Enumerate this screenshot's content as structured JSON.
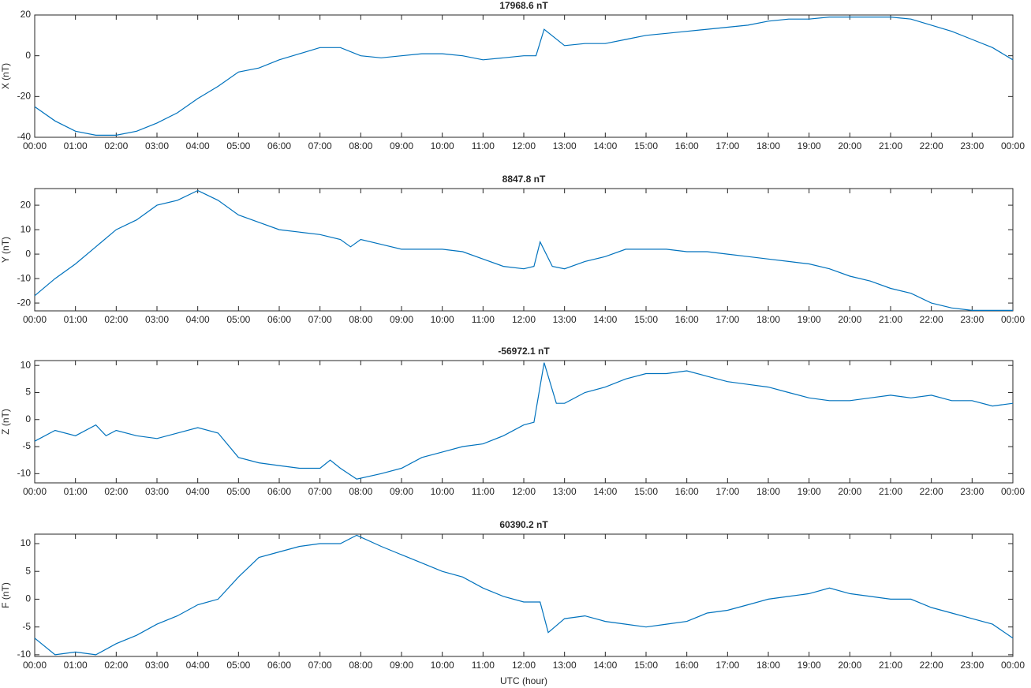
{
  "chart_data": [
    {
      "type": "line",
      "title": "17968.6 nT",
      "ylabel": "X (nT)",
      "color": "#0072bd",
      "xlim": [
        0,
        24
      ],
      "ylim": [
        -40,
        20
      ],
      "yticks": [
        -40,
        -20,
        0,
        20
      ],
      "xticks": [
        {
          "value": 0,
          "label": "00:00"
        },
        {
          "value": 1,
          "label": "01:00"
        },
        {
          "value": 2,
          "label": "02:00"
        },
        {
          "value": 3,
          "label": "03:00"
        },
        {
          "value": 4,
          "label": "04:00"
        },
        {
          "value": 5,
          "label": "05:00"
        },
        {
          "value": 6,
          "label": "06:00"
        },
        {
          "value": 7,
          "label": "07:00"
        },
        {
          "value": 8,
          "label": "08:00"
        },
        {
          "value": 9,
          "label": "09:00"
        },
        {
          "value": 10,
          "label": "10:00"
        },
        {
          "value": 11,
          "label": "11:00"
        },
        {
          "value": 12,
          "label": "12:00"
        },
        {
          "value": 13,
          "label": "13:00"
        },
        {
          "value": 14,
          "label": "14:00"
        },
        {
          "value": 15,
          "label": "15:00"
        },
        {
          "value": 16,
          "label": "16:00"
        },
        {
          "value": 17,
          "label": "17:00"
        },
        {
          "value": 18,
          "label": "18:00"
        },
        {
          "value": 19,
          "label": "19:00"
        },
        {
          "value": 20,
          "label": "20:00"
        },
        {
          "value": 21,
          "label": "21:00"
        },
        {
          "value": 22,
          "label": "22:00"
        },
        {
          "value": 23,
          "label": "23:00"
        },
        {
          "value": 24,
          "label": "00:00"
        }
      ],
      "x": [
        0,
        0.5,
        1,
        1.5,
        2,
        2.5,
        3,
        3.5,
        4,
        4.5,
        5,
        5.5,
        6,
        6.5,
        7,
        7.5,
        8,
        8.5,
        9,
        9.5,
        10,
        10.5,
        11,
        11.5,
        12,
        12.3,
        12.5,
        13,
        13.5,
        14,
        14.5,
        15,
        15.5,
        16,
        16.5,
        17,
        17.5,
        18,
        18.5,
        19,
        19.5,
        20,
        20.5,
        21,
        21.5,
        22,
        22.5,
        23,
        23.5,
        24
      ],
      "values": [
        -25,
        -32,
        -37,
        -39,
        -39,
        -37,
        -33,
        -28,
        -21,
        -15,
        -8,
        -6,
        -2,
        1,
        4,
        4,
        0,
        -1,
        0,
        1,
        1,
        0,
        -2,
        -1,
        0,
        0,
        13,
        5,
        6,
        6,
        8,
        10,
        11,
        12,
        13,
        14,
        15,
        17,
        18,
        18,
        19,
        19,
        19,
        19,
        18,
        15,
        12,
        8,
        4,
        -2
      ]
    },
    {
      "type": "line",
      "title": "8847.8 nT",
      "ylabel": "Y (nT)",
      "color": "#0072bd",
      "xlim": [
        0,
        24
      ],
      "ylim": [
        -23.2,
        26.8
      ],
      "yticks": [
        -20,
        -10,
        0,
        10,
        20
      ],
      "xticks": [
        {
          "value": 0,
          "label": "00:00"
        },
        {
          "value": 1,
          "label": "01:00"
        },
        {
          "value": 2,
          "label": "02:00"
        },
        {
          "value": 3,
          "label": "03:00"
        },
        {
          "value": 4,
          "label": "04:00"
        },
        {
          "value": 5,
          "label": "05:00"
        },
        {
          "value": 6,
          "label": "06:00"
        },
        {
          "value": 7,
          "label": "07:00"
        },
        {
          "value": 8,
          "label": "08:00"
        },
        {
          "value": 9,
          "label": "09:00"
        },
        {
          "value": 10,
          "label": "10:00"
        },
        {
          "value": 11,
          "label": "11:00"
        },
        {
          "value": 12,
          "label": "12:00"
        },
        {
          "value": 13,
          "label": "13:00"
        },
        {
          "value": 14,
          "label": "14:00"
        },
        {
          "value": 15,
          "label": "15:00"
        },
        {
          "value": 16,
          "label": "16:00"
        },
        {
          "value": 17,
          "label": "17:00"
        },
        {
          "value": 18,
          "label": "18:00"
        },
        {
          "value": 19,
          "label": "19:00"
        },
        {
          "value": 20,
          "label": "20:00"
        },
        {
          "value": 21,
          "label": "21:00"
        },
        {
          "value": 22,
          "label": "22:00"
        },
        {
          "value": 23,
          "label": "23:00"
        },
        {
          "value": 24,
          "label": "00:00"
        }
      ],
      "x": [
        0,
        0.5,
        1,
        1.5,
        2,
        2.5,
        3,
        3.5,
        4,
        4.5,
        5,
        5.5,
        6,
        6.5,
        7,
        7.5,
        7.75,
        8,
        8.5,
        9,
        9.5,
        10,
        10.5,
        11,
        11.5,
        12,
        12.25,
        12.4,
        12.7,
        13,
        13.5,
        14,
        14.5,
        15,
        15.5,
        16,
        16.5,
        17,
        17.5,
        18,
        18.5,
        19,
        19.5,
        20,
        20.5,
        21,
        21.5,
        22,
        22.5,
        23,
        23.5,
        24
      ],
      "values": [
        -17,
        -10,
        -4,
        3,
        10,
        14,
        20,
        22,
        26,
        22,
        16,
        13,
        10,
        9,
        8,
        6,
        3,
        6,
        4,
        2,
        2,
        2,
        1,
        -2,
        -5,
        -6,
        -5,
        5,
        -5,
        -6,
        -3,
        -1,
        2,
        2,
        2,
        1,
        1,
        0,
        -1,
        -2,
        -3,
        -4,
        -6,
        -9,
        -11,
        -14,
        -16,
        -20,
        -22,
        -23,
        -23,
        -23
      ]
    },
    {
      "type": "line",
      "title": "-56972.1 nT",
      "ylabel": "Z (nT)",
      "color": "#0072bd",
      "xlim": [
        0,
        24
      ],
      "ylim": [
        -11.7,
        10.9
      ],
      "yticks": [
        -10,
        -5,
        0,
        5,
        10
      ],
      "xticks": [
        {
          "value": 0,
          "label": "00:00"
        },
        {
          "value": 1,
          "label": "01:00"
        },
        {
          "value": 2,
          "label": "02:00"
        },
        {
          "value": 3,
          "label": "03:00"
        },
        {
          "value": 4,
          "label": "04:00"
        },
        {
          "value": 5,
          "label": "05:00"
        },
        {
          "value": 6,
          "label": "06:00"
        },
        {
          "value": 7,
          "label": "07:00"
        },
        {
          "value": 8,
          "label": "08:00"
        },
        {
          "value": 9,
          "label": "09:00"
        },
        {
          "value": 10,
          "label": "10:00"
        },
        {
          "value": 11,
          "label": "11:00"
        },
        {
          "value": 12,
          "label": "12:00"
        },
        {
          "value": 13,
          "label": "13:00"
        },
        {
          "value": 14,
          "label": "14:00"
        },
        {
          "value": 15,
          "label": "15:00"
        },
        {
          "value": 16,
          "label": "16:00"
        },
        {
          "value": 17,
          "label": "17:00"
        },
        {
          "value": 18,
          "label": "18:00"
        },
        {
          "value": 19,
          "label": "19:00"
        },
        {
          "value": 20,
          "label": "20:00"
        },
        {
          "value": 21,
          "label": "21:00"
        },
        {
          "value": 22,
          "label": "22:00"
        },
        {
          "value": 23,
          "label": "23:00"
        },
        {
          "value": 24,
          "label": "00:00"
        }
      ],
      "x": [
        0,
        0.5,
        1,
        1.5,
        1.75,
        2,
        2.5,
        3,
        3.5,
        4,
        4.5,
        5,
        5.5,
        6,
        6.5,
        7,
        7.25,
        7.5,
        7.9,
        8.5,
        9,
        9.5,
        10,
        10.5,
        11,
        11.5,
        12,
        12.25,
        12.5,
        12.8,
        13,
        13.5,
        14,
        14.5,
        15,
        15.5,
        16,
        16.5,
        17,
        17.5,
        18,
        18.5,
        19,
        19.5,
        20,
        20.5,
        21,
        21.5,
        22,
        22.5,
        23,
        23.5,
        24
      ],
      "values": [
        -4,
        -2,
        -3,
        -1,
        -3,
        -2,
        -3,
        -3.5,
        -2.5,
        -1.5,
        -2.5,
        -7,
        -8,
        -8.5,
        -9,
        -9,
        -7.5,
        -9,
        -11,
        -10,
        -9,
        -7,
        -6,
        -5,
        -4.5,
        -3,
        -1,
        -0.5,
        10.5,
        3,
        3,
        5,
        6,
        7.5,
        8.5,
        8.5,
        9,
        8,
        7,
        6.5,
        6,
        5,
        4,
        3.5,
        3.5,
        4,
        4.5,
        4,
        4.5,
        3.5,
        3.5,
        2.5,
        3
      ]
    },
    {
      "type": "line",
      "title": "60390.2 nT",
      "ylabel": "F (nT)",
      "xlabel": "UTC (hour)",
      "color": "#0072bd",
      "xlim": [
        0,
        24
      ],
      "ylim": [
        -10.3,
        11.7
      ],
      "yticks": [
        -10,
        -5,
        0,
        5,
        10
      ],
      "xticks": [
        {
          "value": 0,
          "label": "00:00"
        },
        {
          "value": 1,
          "label": "01:00"
        },
        {
          "value": 2,
          "label": "02:00"
        },
        {
          "value": 3,
          "label": "03:00"
        },
        {
          "value": 4,
          "label": "04:00"
        },
        {
          "value": 5,
          "label": "05:00"
        },
        {
          "value": 6,
          "label": "06:00"
        },
        {
          "value": 7,
          "label": "07:00"
        },
        {
          "value": 8,
          "label": "08:00"
        },
        {
          "value": 9,
          "label": "09:00"
        },
        {
          "value": 10,
          "label": "10:00"
        },
        {
          "value": 11,
          "label": "11:00"
        },
        {
          "value": 12,
          "label": "12:00"
        },
        {
          "value": 13,
          "label": "13:00"
        },
        {
          "value": 14,
          "label": "14:00"
        },
        {
          "value": 15,
          "label": "15:00"
        },
        {
          "value": 16,
          "label": "16:00"
        },
        {
          "value": 17,
          "label": "17:00"
        },
        {
          "value": 18,
          "label": "18:00"
        },
        {
          "value": 19,
          "label": "19:00"
        },
        {
          "value": 20,
          "label": "20:00"
        },
        {
          "value": 21,
          "label": "21:00"
        },
        {
          "value": 22,
          "label": "22:00"
        },
        {
          "value": 23,
          "label": "23:00"
        },
        {
          "value": 24,
          "label": "00:00"
        }
      ],
      "x": [
        0,
        0.5,
        1,
        1.5,
        2,
        2.5,
        3,
        3.5,
        4,
        4.5,
        5,
        5.5,
        6,
        6.5,
        7,
        7.5,
        7.9,
        8.5,
        9,
        9.5,
        10,
        10.5,
        11,
        11.5,
        12,
        12.4,
        12.6,
        13,
        13.5,
        14,
        14.5,
        15,
        15.5,
        16,
        16.5,
        17,
        17.5,
        18,
        18.5,
        19,
        19.5,
        20,
        20.5,
        21,
        21.5,
        22,
        22.5,
        23,
        23.5,
        24
      ],
      "values": [
        -7,
        -10,
        -9.5,
        -10,
        -8,
        -6.5,
        -4.5,
        -3,
        -1,
        0,
        4,
        7.5,
        8.5,
        9.5,
        10,
        10,
        11.5,
        9.5,
        8,
        6.5,
        5,
        4,
        2,
        0.5,
        -0.5,
        -0.5,
        -6,
        -3.5,
        -3,
        -4,
        -4.5,
        -5,
        -4.5,
        -4,
        -2.5,
        -2,
        -1,
        0,
        0.5,
        1,
        2,
        1,
        0.5,
        0,
        0,
        -1.5,
        -2.5,
        -3.5,
        -4.5,
        -7
      ]
    }
  ]
}
